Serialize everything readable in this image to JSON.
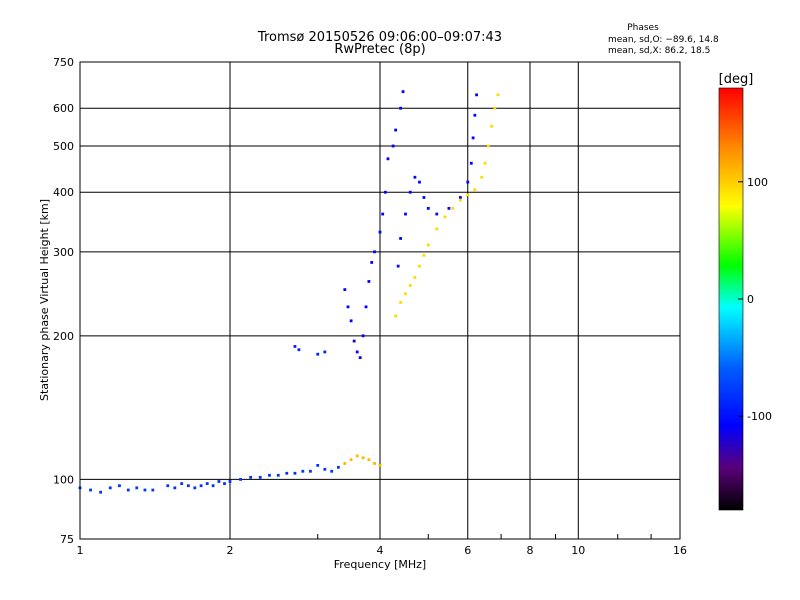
{
  "chart_data": {
    "type": "scatter",
    "title": "Tromsø 20150526 09:06:00–09:07:43",
    "subtitle": "RwPretec (8p)",
    "xlabel": "Frequency [MHz]",
    "ylabel": "Stationary phase Virtual Height [km]",
    "x_scale": "log",
    "y_scale": "log",
    "xlim": [
      1,
      16
    ],
    "ylim": [
      75,
      750
    ],
    "x_ticks": [
      1,
      2,
      4,
      6,
      8,
      10,
      16
    ],
    "x_tick_labels": [
      "1",
      "2",
      "4",
      "6",
      "8",
      "10",
      "16"
    ],
    "y_ticks": [
      75,
      100,
      200,
      300,
      400,
      500,
      600,
      750
    ],
    "y_tick_labels": [
      "75",
      "100",
      "200",
      "300",
      "400",
      "500",
      "600",
      "750"
    ],
    "grid": true,
    "phase_box": {
      "heading": "Phases",
      "line_o": "mean, sd,O: −89.6, 14.8",
      "line_x": "mean, sd,X:  86.2, 18.5"
    },
    "colorbar": {
      "label": "[deg]",
      "range": [
        -180,
        180
      ],
      "ticks": [
        100,
        0,
        -100
      ],
      "tick_labels": [
        "100",
        "0",
        "-100"
      ]
    },
    "traces": [
      {
        "points": [
          [
            1.0,
            96
          ],
          [
            1.05,
            95
          ],
          [
            1.1,
            94
          ],
          [
            1.15,
            96
          ],
          [
            1.2,
            97
          ],
          [
            1.25,
            95
          ],
          [
            1.3,
            96
          ],
          [
            1.35,
            95
          ],
          [
            1.4,
            95
          ],
          [
            1.5,
            97
          ],
          [
            1.55,
            96
          ],
          [
            1.6,
            98
          ],
          [
            1.65,
            97
          ],
          [
            1.7,
            96
          ],
          [
            1.75,
            97
          ],
          [
            1.8,
            98
          ],
          [
            1.85,
            97
          ],
          [
            1.9,
            99
          ],
          [
            1.95,
            98
          ],
          [
            2.0,
            99
          ],
          [
            2.1,
            100
          ],
          [
            2.2,
            101
          ],
          [
            2.3,
            101
          ],
          [
            2.4,
            102
          ],
          [
            2.5,
            102
          ],
          [
            2.6,
            103
          ],
          [
            2.7,
            103
          ],
          [
            2.8,
            104
          ],
          [
            2.9,
            104
          ],
          [
            3.0,
            107
          ],
          [
            3.1,
            105
          ],
          [
            3.2,
            104
          ],
          [
            3.3,
            106
          ]
        ],
        "phase": -80
      },
      {
        "points": [
          [
            2.7,
            190
          ],
          [
            2.75,
            187
          ],
          [
            3.0,
            183
          ],
          [
            3.1,
            185
          ]
        ],
        "phase": -90
      },
      {
        "points": [
          [
            3.4,
            250
          ],
          [
            3.45,
            230
          ],
          [
            3.5,
            215
          ],
          [
            3.55,
            195
          ],
          [
            3.6,
            185
          ],
          [
            3.65,
            180
          ],
          [
            3.7,
            200
          ],
          [
            3.75,
            230
          ],
          [
            3.8,
            260
          ],
          [
            3.85,
            285
          ],
          [
            3.9,
            300
          ],
          [
            4.0,
            330
          ],
          [
            4.05,
            360
          ],
          [
            4.1,
            400
          ],
          [
            4.15,
            470
          ],
          [
            4.25,
            500
          ],
          [
            4.3,
            540
          ],
          [
            4.4,
            600
          ],
          [
            4.45,
            650
          ]
        ],
        "phase": -110
      },
      {
        "points": [
          [
            4.35,
            280
          ],
          [
            4.4,
            320
          ],
          [
            4.5,
            360
          ],
          [
            4.6,
            400
          ],
          [
            4.7,
            430
          ],
          [
            4.8,
            420
          ],
          [
            4.9,
            390
          ],
          [
            5.0,
            370
          ],
          [
            5.2,
            360
          ],
          [
            5.5,
            370
          ],
          [
            5.8,
            390
          ],
          [
            6.0,
            420
          ],
          [
            6.1,
            460
          ],
          [
            6.15,
            520
          ],
          [
            6.2,
            580
          ],
          [
            6.25,
            640
          ]
        ],
        "phase": -105
      },
      {
        "points": [
          [
            4.3,
            220
          ],
          [
            4.4,
            235
          ],
          [
            4.5,
            245
          ],
          [
            4.6,
            255
          ],
          [
            4.7,
            265
          ],
          [
            4.8,
            280
          ],
          [
            4.9,
            295
          ],
          [
            5.0,
            310
          ],
          [
            5.2,
            335
          ],
          [
            5.4,
            355
          ],
          [
            5.6,
            370
          ],
          [
            5.8,
            385
          ],
          [
            6.0,
            395
          ],
          [
            6.2,
            405
          ],
          [
            6.4,
            430
          ],
          [
            6.5,
            460
          ],
          [
            6.6,
            500
          ],
          [
            6.7,
            550
          ],
          [
            6.8,
            600
          ],
          [
            6.9,
            640
          ]
        ],
        "phase": 95
      },
      {
        "points": [
          [
            3.4,
            108
          ],
          [
            3.5,
            110
          ],
          [
            3.6,
            112
          ],
          [
            3.7,
            111
          ],
          [
            3.8,
            110
          ],
          [
            3.9,
            108
          ],
          [
            4.0,
            107
          ]
        ],
        "phase": 110
      }
    ]
  }
}
